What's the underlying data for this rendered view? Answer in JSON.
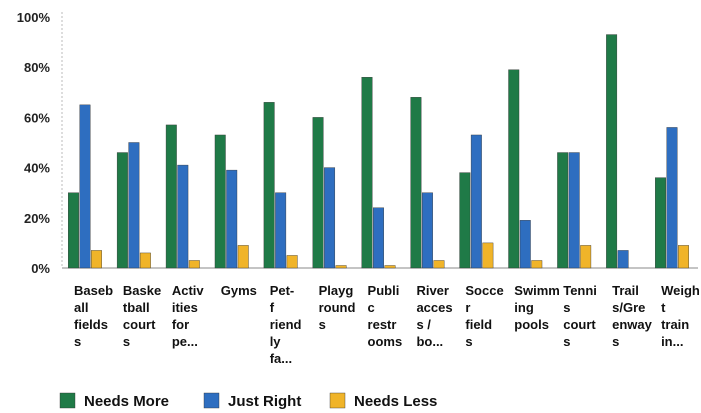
{
  "chart_data": {
    "type": "bar",
    "title": "",
    "xlabel": "",
    "ylabel": "",
    "ylim": [
      0,
      100
    ],
    "yticks": [
      "0%",
      "20%",
      "40%",
      "60%",
      "80%",
      "100%"
    ],
    "grid": false,
    "legend_position": "bottom-left",
    "categories": [
      [
        "Baseb",
        "all",
        "fields",
        "s"
      ],
      [
        "Baske",
        "tball",
        "court",
        "s"
      ],
      [
        "Activ",
        "ities",
        "for",
        "pe..."
      ],
      [
        "Gyms"
      ],
      [
        "Pet-",
        "f",
        "riend",
        "ly",
        "fa..."
      ],
      [
        "Playg",
        "round",
        "s"
      ],
      [
        "Publi",
        "c",
        "restr",
        "ooms"
      ],
      [
        "River",
        "acces",
        "s /",
        "bo..."
      ],
      [
        "Socce",
        "r",
        "field",
        "s"
      ],
      [
        "Swimm",
        "ing",
        "pools"
      ],
      [
        "Tenni",
        "s",
        "court",
        "s"
      ],
      [
        "Trail",
        "s/Gre",
        "enway",
        "s"
      ],
      [
        "Weigh",
        "t",
        "train",
        "in..."
      ]
    ],
    "series": [
      {
        "name": "Needs More",
        "color": "#1f7a47",
        "values": [
          30,
          46,
          57,
          53,
          66,
          60,
          76,
          68,
          38,
          79,
          46,
          93,
          36
        ]
      },
      {
        "name": "Just Right",
        "color": "#2e6ec0",
        "values": [
          65,
          50,
          41,
          39,
          30,
          40,
          24,
          30,
          53,
          19,
          46,
          7,
          56
        ]
      },
      {
        "name": "Needs Less",
        "color": "#f0b429",
        "values": [
          7,
          6,
          3,
          9,
          5,
          1,
          1,
          3,
          10,
          3,
          9,
          0,
          9
        ]
      }
    ]
  }
}
